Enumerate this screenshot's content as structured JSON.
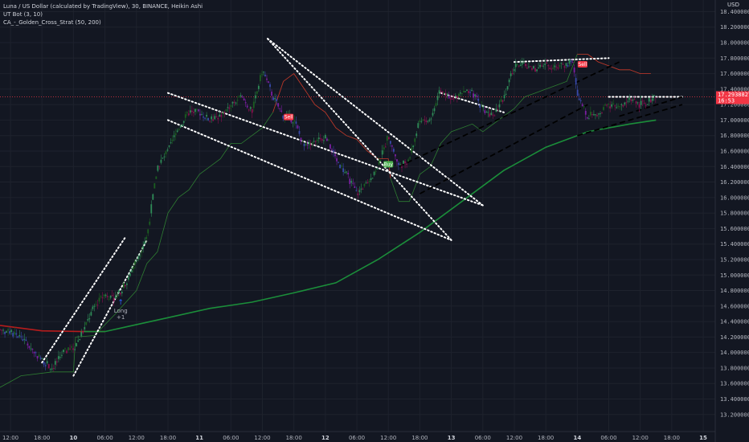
{
  "title": "Luna / US Dollar (calculated by TradingView), 30, BINANCE, Heikin Ashi",
  "indicators": [
    "UT Bot (3, 10)",
    "CA_-_Golden_Cross_Strat (50, 200)"
  ],
  "currency": "USD",
  "chart_data": {
    "type": "candlestick",
    "y_ticks": [
      "18.40000000",
      "18.20000000",
      "18.00000000",
      "17.80000000",
      "17.60000000",
      "17.40000000",
      "17.20000000",
      "17.00000000",
      "16.80000000",
      "16.60000000",
      "16.40000000",
      "16.20000000",
      "16.00000000",
      "15.80000000",
      "15.60000000",
      "15.40000000",
      "15.20000000",
      "15.00000000",
      "14.80000000",
      "14.60000000",
      "14.40000000",
      "14.20000000",
      "14.00000000",
      "13.80000000",
      "13.60000000",
      "13.40000000",
      "13.20000000",
      "13.00000000"
    ],
    "ylim": [
      12.98,
      18.55
    ],
    "x_ticks": [
      "12:00",
      "18:00",
      "10",
      "06:00",
      "12:00",
      "18:00",
      "11",
      "06:00",
      "12:00",
      "18:00",
      "12",
      "06:00",
      "12:00",
      "18:00",
      "13",
      "06:00",
      "12:00",
      "18:00",
      "14",
      "06:00",
      "12:00",
      "18:00",
      "15"
    ],
    "day_ticks": [
      "10",
      "11",
      "12",
      "13",
      "14",
      "15"
    ],
    "x_range": [
      0,
      66
    ],
    "last_price": "17.29388279",
    "countdown": "16:53",
    "price_line": 17.3,
    "close_path": [
      [
        0,
        14.3
      ],
      [
        2,
        14.2
      ],
      [
        3,
        14.05
      ],
      [
        4,
        13.9
      ],
      [
        5,
        13.8
      ],
      [
        6,
        14.0
      ],
      [
        7,
        14.05
      ],
      [
        8,
        14.3
      ],
      [
        9,
        14.6
      ],
      [
        10,
        14.75
      ],
      [
        11,
        14.7
      ],
      [
        12,
        14.9
      ],
      [
        13,
        15.2
      ],
      [
        14,
        15.5
      ],
      [
        15,
        16.4
      ],
      [
        16,
        16.6
      ],
      [
        17,
        16.9
      ],
      [
        18,
        17.1
      ],
      [
        19,
        17.1
      ],
      [
        20,
        17.0
      ],
      [
        21,
        17.05
      ],
      [
        22,
        17.2
      ],
      [
        23,
        17.3
      ],
      [
        24,
        17.1
      ],
      [
        25,
        17.65
      ],
      [
        26,
        17.3
      ],
      [
        27,
        17.05
      ],
      [
        28,
        17.0
      ],
      [
        29,
        16.65
      ],
      [
        30,
        16.7
      ],
      [
        31,
        16.8
      ],
      [
        32,
        16.5
      ],
      [
        33,
        16.3
      ],
      [
        34,
        16.05
      ],
      [
        35,
        16.2
      ],
      [
        36,
        16.4
      ],
      [
        37,
        16.8
      ],
      [
        38,
        16.4
      ],
      [
        39,
        16.5
      ],
      [
        40,
        17.0
      ],
      [
        41,
        17.0
      ],
      [
        42,
        17.4
      ],
      [
        43,
        17.3
      ],
      [
        44,
        17.35
      ],
      [
        45,
        17.35
      ],
      [
        46,
        17.15
      ],
      [
        47,
        17.05
      ],
      [
        48,
        17.3
      ],
      [
        49,
        17.7
      ],
      [
        50,
        17.7
      ],
      [
        51,
        17.65
      ],
      [
        52,
        17.7
      ],
      [
        53,
        17.7
      ],
      [
        54,
        17.72
      ],
      [
        54.5,
        17.8
      ],
      [
        55,
        17.3
      ],
      [
        56,
        17.05
      ],
      [
        57,
        17.1
      ],
      [
        58,
        17.2
      ],
      [
        59,
        17.15
      ],
      [
        60,
        17.25
      ],
      [
        61,
        17.2
      ],
      [
        62,
        17.25
      ],
      [
        62.5,
        17.3
      ]
    ],
    "ut_bot_stop": [
      [
        0,
        13.55
      ],
      [
        2,
        13.7
      ],
      [
        5,
        13.75
      ],
      [
        7,
        13.75
      ],
      [
        7.2,
        14.2
      ],
      [
        9,
        14.22
      ],
      [
        11,
        14.5
      ],
      [
        13,
        14.8
      ],
      [
        14,
        15.15
      ],
      [
        15,
        15.3
      ],
      [
        16,
        15.8
      ],
      [
        17,
        16.0
      ],
      [
        18,
        16.1
      ],
      [
        19,
        16.3
      ],
      [
        20,
        16.4
      ],
      [
        21,
        16.5
      ],
      [
        22,
        16.7
      ],
      [
        23,
        16.7
      ],
      [
        24,
        16.8
      ],
      [
        25,
        16.9
      ],
      [
        26,
        17.1
      ],
      [
        27,
        17.5
      ],
      [
        28,
        17.6
      ],
      [
        29,
        17.4
      ],
      [
        30,
        17.2
      ],
      [
        31,
        17.1
      ],
      [
        32,
        16.9
      ],
      [
        33,
        16.8
      ],
      [
        34,
        16.75
      ],
      [
        35,
        16.6
      ],
      [
        36,
        16.5
      ],
      [
        37,
        16.5
      ],
      [
        37.2,
        16.25
      ],
      [
        38,
        15.95
      ],
      [
        39,
        15.95
      ],
      [
        40,
        16.3
      ],
      [
        41,
        16.4
      ],
      [
        42,
        16.7
      ],
      [
        43,
        16.85
      ],
      [
        44,
        16.9
      ],
      [
        45,
        16.95
      ],
      [
        46,
        16.85
      ],
      [
        47,
        16.95
      ],
      [
        48,
        17.05
      ],
      [
        49,
        17.15
      ],
      [
        50,
        17.3
      ],
      [
        51,
        17.35
      ],
      [
        52,
        17.4
      ],
      [
        53,
        17.45
      ],
      [
        54,
        17.5
      ],
      [
        55,
        17.85
      ],
      [
        56,
        17.85
      ],
      [
        57,
        17.75
      ],
      [
        58,
        17.7
      ],
      [
        59,
        17.65
      ],
      [
        60,
        17.65
      ],
      [
        61,
        17.6
      ],
      [
        62,
        17.6
      ]
    ],
    "ma_red": [
      [
        0,
        14.35
      ],
      [
        4,
        14.28
      ],
      [
        8,
        14.27
      ],
      [
        10,
        14.27
      ]
    ],
    "ma_green": [
      [
        8,
        14.27
      ],
      [
        10,
        14.27
      ],
      [
        12,
        14.33
      ],
      [
        16,
        14.45
      ],
      [
        20,
        14.57
      ],
      [
        24,
        14.65
      ],
      [
        28,
        14.77
      ],
      [
        32,
        14.9
      ],
      [
        36,
        15.2
      ],
      [
        40,
        15.55
      ],
      [
        44,
        15.95
      ],
      [
        48,
        16.35
      ],
      [
        52,
        16.65
      ],
      [
        56,
        16.85
      ],
      [
        60,
        16.95
      ],
      [
        62.5,
        17.0
      ]
    ],
    "dotted_lines": [
      [
        [
          4,
          13.87
        ],
        [
          12,
          15.5
        ]
      ],
      [
        [
          7,
          13.7
        ],
        [
          14,
          15.45
        ]
      ],
      [
        [
          16,
          17.35
        ],
        [
          46,
          15.9
        ]
      ],
      [
        [
          16,
          17.0
        ],
        [
          43,
          15.45
        ]
      ],
      [
        [
          25.5,
          18.05
        ],
        [
          46,
          15.9
        ]
      ],
      [
        [
          25.5,
          18.05
        ],
        [
          43,
          15.45
        ]
      ],
      [
        [
          49,
          17.75
        ],
        [
          58,
          17.8
        ]
      ],
      [
        [
          58,
          17.3
        ],
        [
          65,
          17.3
        ]
      ],
      [
        [
          42,
          17.35
        ],
        [
          48,
          17.1
        ]
      ]
    ],
    "dashed_lines": [
      [
        [
          38,
          16.4
        ],
        [
          59,
          17.75
        ]
      ],
      [
        [
          40,
          16.05
        ],
        [
          56,
          17.2
        ]
      ],
      [
        [
          55,
          16.8
        ],
        [
          65,
          17.2
        ]
      ],
      [
        [
          59,
          17.05
        ],
        [
          65,
          17.3
        ]
      ]
    ],
    "signals": [
      {
        "label": "Buy",
        "x": 37,
        "y": 16.43,
        "color": "#4caf50"
      },
      {
        "label": "Sell",
        "x": 27.5,
        "y": 17.04,
        "color": "#f23645"
      },
      {
        "label": "Sell",
        "x": 55.5,
        "y": 17.72,
        "color": "#f23645"
      }
    ],
    "long_annotation": {
      "text": "Long",
      "sub": "+1",
      "x": 11.5,
      "y": 14.6
    }
  }
}
